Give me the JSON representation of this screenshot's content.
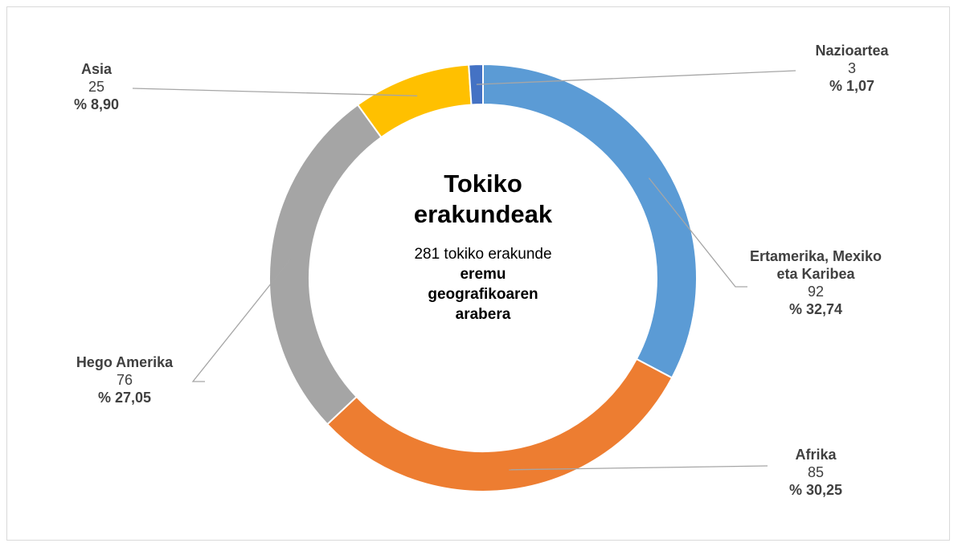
{
  "chart_data": {
    "type": "donut",
    "title": "Tokiko erakundeak",
    "subtitle": [
      "281 tokiko erakunde",
      "eremu geografikoaren arabera"
    ],
    "categories": [
      "Ertamerika, Mexiko eta Karibea",
      "Afrika",
      "Hego Amerika",
      "Asia",
      "Nazioartea"
    ],
    "values": [
      92,
      85,
      76,
      25,
      3
    ],
    "percent_labels": [
      "% 32,74",
      "% 30,25",
      "% 27,05",
      "% 8,90",
      "% 1,07"
    ],
    "colors": [
      "#5b9bd5",
      "#ed7d31",
      "#a5a5a5",
      "#ffc000",
      "#4472c4"
    ]
  }
}
